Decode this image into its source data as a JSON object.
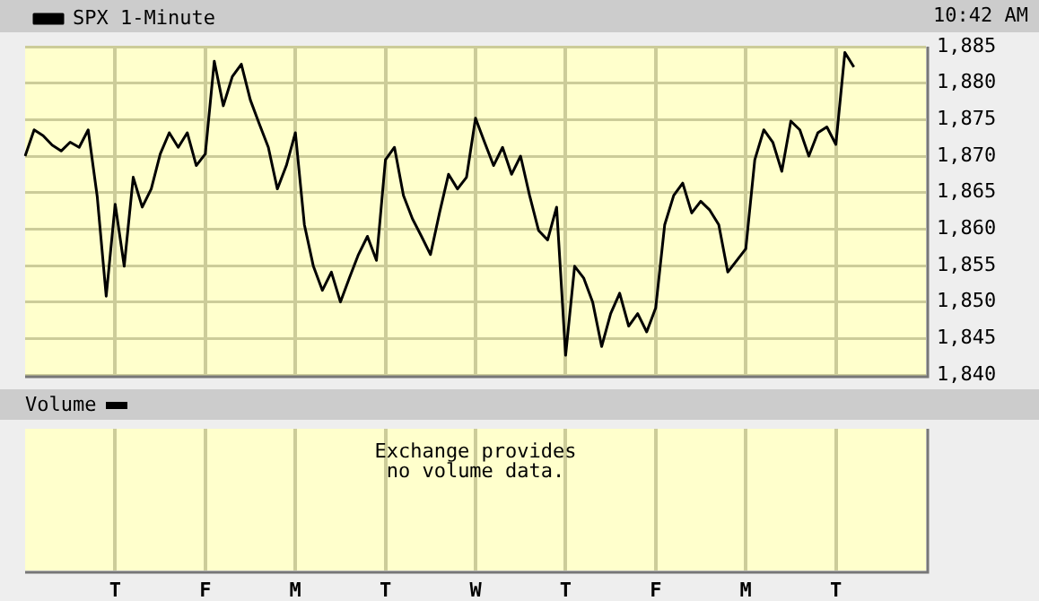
{
  "chart_data": [
    {
      "type": "line",
      "subtitle": "10:42 AM",
      "categories": [
        null,
        null,
        null,
        null,
        null,
        null,
        null,
        null,
        null,
        null,
        null,
        null,
        null,
        null,
        null,
        null,
        null,
        null,
        null,
        null,
        null,
        null,
        null,
        null,
        null,
        null,
        null,
        null,
        null,
        null,
        null,
        null,
        null,
        null,
        null,
        null,
        null,
        null,
        null,
        null,
        null,
        null,
        null,
        null,
        null,
        null,
        null,
        null,
        null,
        null,
        null,
        null,
        null,
        null,
        null,
        null,
        null,
        null,
        null,
        null,
        null,
        null,
        null,
        null,
        null,
        null,
        null,
        null,
        null,
        null,
        null,
        null,
        null,
        null,
        null,
        null,
        null,
        null,
        null,
        null,
        null,
        null,
        null,
        null,
        null,
        null,
        null,
        null,
        null,
        null,
        null,
        null,
        null,
        null,
        null,
        null,
        null,
        null,
        null,
        null,
        null
      ],
      "series": [
        {
          "name": "SPX 1-Minute",
          "color": "#000000",
          "values": [
            1870.0,
            1873.6,
            1872.8,
            1871.5,
            1870.7,
            1871.9,
            1871.2,
            1873.6,
            1864.5,
            1850.8,
            1863.4,
            1854.9,
            1867.1,
            1863.0,
            1865.5,
            1870.3,
            1873.2,
            1871.2,
            1873.2,
            1868.7,
            1870.3,
            1883.0,
            1876.9,
            1880.9,
            1882.6,
            1877.7,
            1874.4,
            1871.2,
            1865.5,
            1868.7,
            1873.2,
            1860.6,
            1854.9,
            1851.6,
            1854.1,
            1850.0,
            1853.3,
            1856.5,
            1859.0,
            1855.7,
            1869.5,
            1871.2,
            1864.6,
            1861.4,
            1859.0,
            1856.5,
            1862.2,
            1867.5,
            1865.5,
            1867.1,
            1875.2,
            1871.9,
            1868.7,
            1871.2,
            1867.5,
            1870.0,
            1864.6,
            1859.8,
            1858.5,
            1863.0,
            1842.7,
            1854.9,
            1853.3,
            1850.0,
            1843.9,
            1848.4,
            1851.2,
            1846.7,
            1848.4,
            1845.9,
            1849.2,
            1860.6,
            1864.6,
            1866.3,
            1862.2,
            1863.8,
            1862.6,
            1860.6,
            1854.1,
            1855.7,
            1857.3,
            1869.5,
            1873.6,
            1871.9,
            1867.9,
            1874.8,
            1873.6,
            1870.0,
            1873.2,
            1874.0,
            1871.6,
            1884.2,
            1882.2,
            null,
            null,
            null,
            null,
            null,
            null,
            null,
            null
          ]
        }
      ],
      "ylim": [
        1840,
        1885
      ],
      "yticks": [
        {
          "value": 1840,
          "label": "1,840"
        },
        {
          "value": 1845,
          "label": "1,845"
        },
        {
          "value": 1850,
          "label": "1,850"
        },
        {
          "value": 1855,
          "label": "1,855"
        },
        {
          "value": 1860,
          "label": "1,860"
        },
        {
          "value": 1865,
          "label": "1,865"
        },
        {
          "value": 1870,
          "label": "1,870"
        },
        {
          "value": 1875,
          "label": "1,875"
        },
        {
          "value": 1880,
          "label": "1,880"
        },
        {
          "value": 1885,
          "label": "1,885"
        }
      ],
      "grid": true,
      "legend": "top left",
      "marker": "none",
      "line_style": "solid",
      "tick_labels": "y"
    },
    {
      "type": "other",
      "title": "Volume",
      "categories": [
        null,
        null,
        null,
        null,
        null,
        null,
        null,
        null,
        null,
        null,
        "T",
        null,
        null,
        null,
        null,
        null,
        null,
        null,
        null,
        null,
        "F",
        null,
        null,
        null,
        null,
        null,
        null,
        null,
        null,
        null,
        "M",
        null,
        null,
        null,
        null,
        null,
        null,
        null,
        null,
        null,
        "T",
        null,
        null,
        null,
        null,
        null,
        null,
        null,
        null,
        null,
        "W",
        null,
        null,
        null,
        null,
        null,
        null,
        null,
        null,
        null,
        "T",
        null,
        null,
        null,
        null,
        null,
        null,
        null,
        null,
        null,
        "F",
        null,
        null,
        null,
        null,
        null,
        null,
        null,
        null,
        null,
        "M",
        null,
        null,
        null,
        null,
        null,
        null,
        null,
        null,
        null,
        "T",
        null,
        null,
        null,
        null,
        null,
        null,
        null,
        null,
        null,
        null
      ],
      "annotations": [
        "Exchange provides\nno volume data."
      ]
    }
  ]
}
